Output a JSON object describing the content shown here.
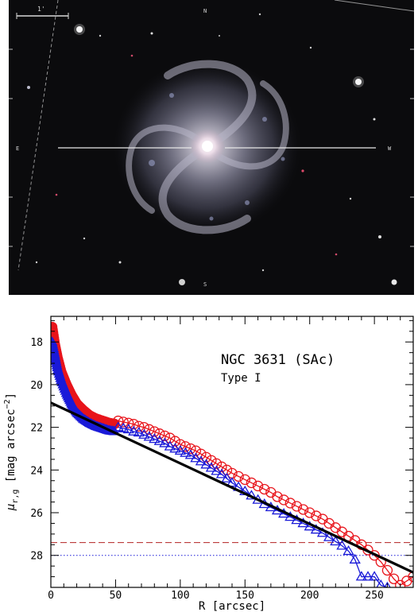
{
  "image_panel": {
    "scale_bar_label": "1'",
    "compass": {
      "north": "N",
      "east": "E",
      "west": "W",
      "south": "S"
    }
  },
  "chart_data": {
    "type": "scatter",
    "title": "NGC 3631 (SAc)",
    "subtitle": "Type I",
    "xlabel": "R [arcsec]",
    "ylabel": "μr,g [mag arcsec−2]",
    "ylabel_parts": {
      "mu": "μ",
      "sub": "r,g",
      "main": "[mag arcsec",
      "sup": "−2",
      "close": "]"
    },
    "xlim": [
      0,
      280
    ],
    "ylim": [
      29.5,
      16.8
    ],
    "y_inverted": true,
    "x_ticks": [
      0,
      50,
      100,
      150,
      200,
      250
    ],
    "y_ticks": [
      18,
      20,
      22,
      24,
      26,
      28
    ],
    "grid": false,
    "series": [
      {
        "name": "r",
        "color": "#e8141b",
        "marker": "circle",
        "dense": [
          [
            1,
            17.3
          ],
          [
            3,
            18.1
          ],
          [
            5,
            18.7
          ],
          [
            8,
            19.4
          ],
          [
            12,
            20.0
          ],
          [
            16,
            20.5
          ],
          [
            20,
            20.9
          ],
          [
            25,
            21.2
          ],
          [
            30,
            21.45
          ],
          [
            35,
            21.6
          ],
          [
            40,
            21.7
          ],
          [
            45,
            21.8
          ],
          [
            50,
            21.85
          ]
        ],
        "points": [
          [
            52,
            21.7
          ],
          [
            56,
            21.75
          ],
          [
            60,
            21.8
          ],
          [
            64,
            21.85
          ],
          [
            68,
            21.95
          ],
          [
            72,
            22.0
          ],
          [
            76,
            22.1
          ],
          [
            80,
            22.2
          ],
          [
            84,
            22.3
          ],
          [
            88,
            22.4
          ],
          [
            92,
            22.5
          ],
          [
            96,
            22.65
          ],
          [
            100,
            22.8
          ],
          [
            104,
            22.9
          ],
          [
            108,
            23.0
          ],
          [
            112,
            23.1
          ],
          [
            116,
            23.25
          ],
          [
            120,
            23.4
          ],
          [
            124,
            23.55
          ],
          [
            128,
            23.7
          ],
          [
            132,
            23.85
          ],
          [
            136,
            24.0
          ],
          [
            140,
            24.15
          ],
          [
            145,
            24.3
          ],
          [
            150,
            24.45
          ],
          [
            155,
            24.6
          ],
          [
            160,
            24.75
          ],
          [
            165,
            24.9
          ],
          [
            170,
            25.05
          ],
          [
            175,
            25.25
          ],
          [
            180,
            25.4
          ],
          [
            185,
            25.55
          ],
          [
            190,
            25.7
          ],
          [
            195,
            25.85
          ],
          [
            200,
            26.0
          ],
          [
            205,
            26.15
          ],
          [
            210,
            26.3
          ],
          [
            215,
            26.5
          ],
          [
            220,
            26.7
          ],
          [
            225,
            26.9
          ],
          [
            230,
            27.1
          ],
          [
            235,
            27.3
          ],
          [
            240,
            27.5
          ],
          [
            245,
            27.75
          ],
          [
            250,
            28.0
          ],
          [
            255,
            28.3
          ],
          [
            260,
            28.7
          ],
          [
            265,
            29.1
          ],
          [
            270,
            29.4
          ],
          [
            275,
            29.2
          ],
          [
            280,
            29.0
          ]
        ]
      },
      {
        "name": "g",
        "color": "#1a1ad8",
        "marker": "triangle",
        "dense": [
          [
            1,
            18.0
          ],
          [
            3,
            18.6
          ],
          [
            5,
            19.2
          ],
          [
            8,
            19.8
          ],
          [
            12,
            20.4
          ],
          [
            16,
            20.9
          ],
          [
            20,
            21.3
          ],
          [
            25,
            21.6
          ],
          [
            30,
            21.8
          ],
          [
            35,
            21.95
          ],
          [
            40,
            22.05
          ],
          [
            45,
            22.15
          ],
          [
            50,
            22.2
          ]
        ],
        "points": [
          [
            52,
            22.0
          ],
          [
            56,
            22.05
          ],
          [
            60,
            22.1
          ],
          [
            64,
            22.2
          ],
          [
            68,
            22.25
          ],
          [
            72,
            22.35
          ],
          [
            76,
            22.45
          ],
          [
            80,
            22.55
          ],
          [
            84,
            22.65
          ],
          [
            88,
            22.75
          ],
          [
            92,
            22.9
          ],
          [
            96,
            23.0
          ],
          [
            100,
            23.1
          ],
          [
            104,
            23.2
          ],
          [
            108,
            23.3
          ],
          [
            112,
            23.45
          ],
          [
            116,
            23.6
          ],
          [
            120,
            23.75
          ],
          [
            124,
            23.9
          ],
          [
            128,
            24.05
          ],
          [
            132,
            24.2
          ],
          [
            136,
            24.4
          ],
          [
            140,
            24.6
          ],
          [
            145,
            24.8
          ],
          [
            150,
            25.0
          ],
          [
            155,
            25.2
          ],
          [
            160,
            25.4
          ],
          [
            165,
            25.6
          ],
          [
            170,
            25.75
          ],
          [
            175,
            25.9
          ],
          [
            180,
            26.05
          ],
          [
            185,
            26.2
          ],
          [
            190,
            26.35
          ],
          [
            195,
            26.5
          ],
          [
            200,
            26.65
          ],
          [
            205,
            26.8
          ],
          [
            210,
            26.95
          ],
          [
            215,
            27.15
          ],
          [
            220,
            27.35
          ],
          [
            225,
            27.55
          ],
          [
            230,
            27.8
          ],
          [
            235,
            28.2
          ],
          [
            240,
            29.0
          ],
          [
            245,
            29.0
          ],
          [
            250,
            29.0
          ],
          [
            255,
            29.4
          ],
          [
            260,
            29.5
          ]
        ]
      }
    ],
    "fit_line": {
      "color": "#000000",
      "x": [
        0,
        280
      ],
      "y": [
        20.85,
        28.8
      ]
    },
    "reference_lines": [
      {
        "style": "dashed",
        "color": "#b22222",
        "y": 27.4
      },
      {
        "style": "dotted",
        "color": "#1a1ad8",
        "y": 28.0
      }
    ]
  }
}
